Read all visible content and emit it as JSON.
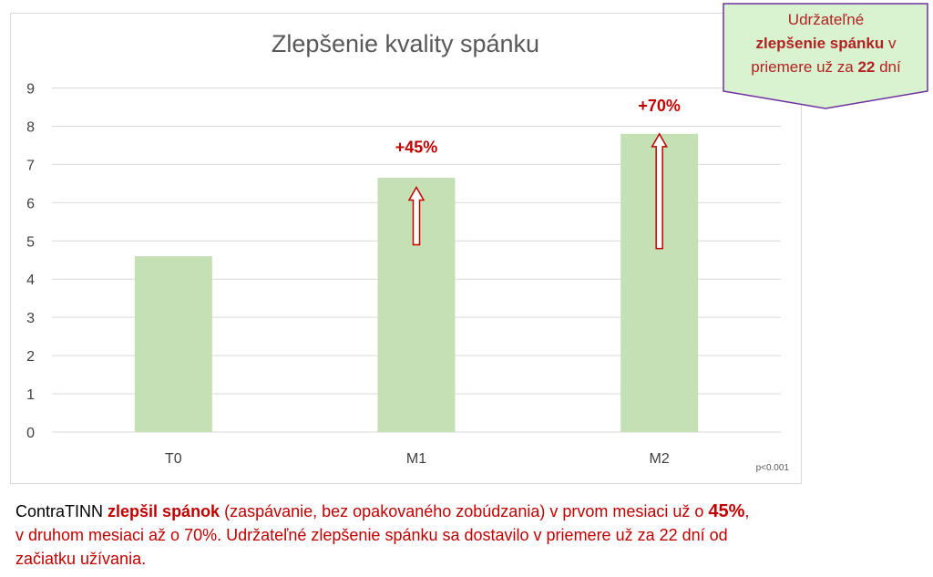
{
  "chart_data": {
    "type": "bar",
    "title": "Zlepšenie kvality spánku",
    "categories": [
      "T0",
      "M1",
      "M2"
    ],
    "values": [
      4.6,
      6.65,
      7.8
    ],
    "ylim": [
      0,
      9
    ],
    "yticks": [
      0,
      1,
      2,
      3,
      4,
      5,
      6,
      7,
      8,
      9
    ],
    "grid": true,
    "bar_color": "#c5e0b4",
    "annotations": [
      {
        "category": "M1",
        "label": "+45%",
        "arrow_from": 4.9,
        "arrow_to": 6.4
      },
      {
        "category": "M2",
        "label": "+70%",
        "arrow_from": 4.8,
        "arrow_to": 7.8
      }
    ],
    "note": "p<0.001"
  },
  "callout": {
    "line1": "Udržateľné",
    "line2_bold": "zlepšenie spánku",
    "line2_rest": " v",
    "line3_pre": "priemere už za ",
    "line3_bold": "22",
    "line3_post": " dní",
    "border_color": "#7030a0",
    "fill_color": "#d9f2d0"
  },
  "caption": {
    "brand": "ContraTINN ",
    "bold1": "zlepšil spánok",
    "part2": " (zaspávanie, bez opakovaného zobúdzania) v prvom mesiaci už o ",
    "bold2": "45%",
    "part3": ",",
    "line2": "v druhom mesiaci až o 70%. Udržateľné zlepšenie spánku sa dostavilo v priemere už za 22 dní od",
    "line3": "začiatku užívania."
  },
  "colors": {
    "accent_red": "#c00000",
    "grid": "#d9d9d9",
    "text_gray": "#595959"
  }
}
